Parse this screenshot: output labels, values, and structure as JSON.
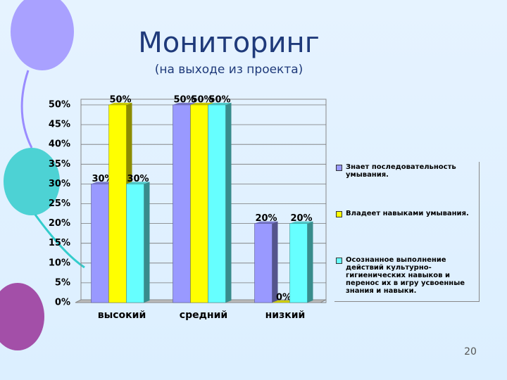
{
  "chart_data": {
    "type": "bar",
    "title": "Мониторинг",
    "subtitle": "(на выходе из  проекта)",
    "page_number": "20",
    "categories": [
      "высокий",
      "средний",
      "низкий"
    ],
    "series": [
      {
        "name": "Знает последовательность умывания.",
        "color": "#9999ff",
        "values": [
          30,
          50,
          20
        ],
        "value_labels": [
          "30%",
          "50%",
          "20%"
        ]
      },
      {
        "name": "Владеет навыками умывания.",
        "color": "#ffff00",
        "values": [
          50,
          50,
          0
        ],
        "value_labels": [
          "50%",
          "50%",
          "0%"
        ]
      },
      {
        "name": "Осознанное выполнение действий культурно-гигиенических навыков и перенос их в игру усвоенные знания и навыки.",
        "color": "#66ffff",
        "values": [
          30,
          50,
          20
        ],
        "value_labels": [
          "30%",
          "50%",
          "20%"
        ]
      }
    ],
    "ylim": [
      0,
      50
    ],
    "yticks": [
      {
        "value": 0,
        "label": "0%"
      },
      {
        "value": 5,
        "label": "5%"
      },
      {
        "value": 10,
        "label": "10%"
      },
      {
        "value": 15,
        "label": "15%"
      },
      {
        "value": 20,
        "label": "20%"
      },
      {
        "value": 25,
        "label": "25%"
      },
      {
        "value": 30,
        "label": "30%"
      },
      {
        "value": 35,
        "label": "35%"
      },
      {
        "value": 40,
        "label": "40%"
      },
      {
        "value": 45,
        "label": "45%"
      },
      {
        "value": 50,
        "label": "50%"
      }
    ],
    "grid": true,
    "legend": "right"
  }
}
